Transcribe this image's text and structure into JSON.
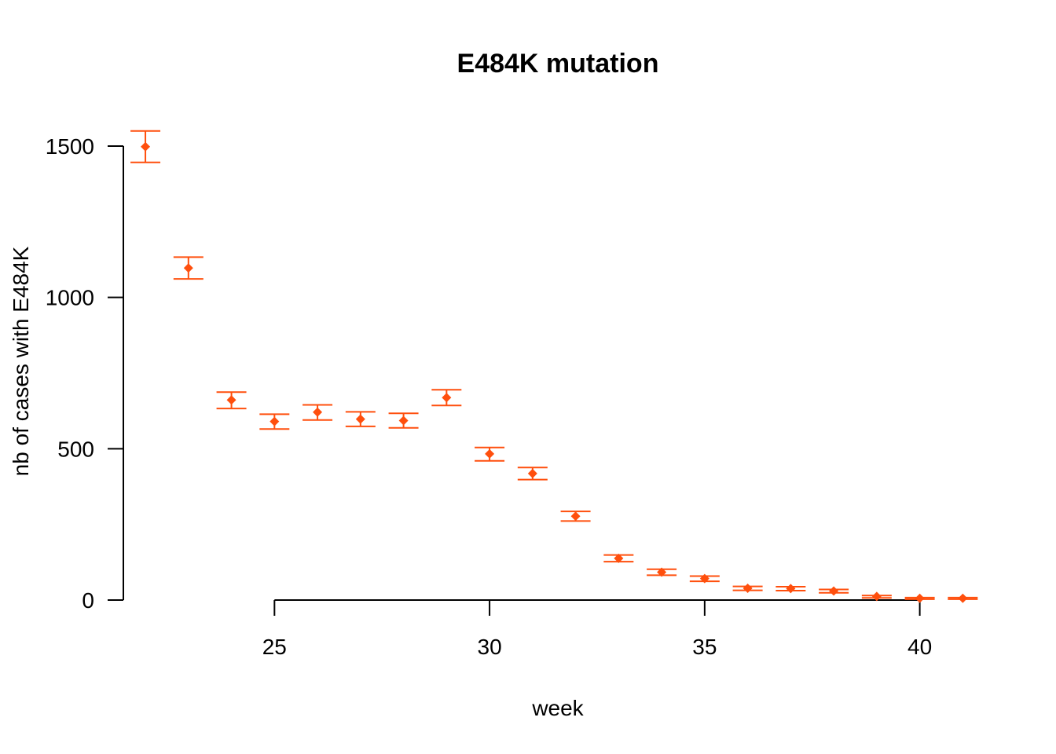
{
  "chart_data": {
    "type": "scatter",
    "title": "E484K mutation",
    "xlabel": "week",
    "ylabel": "nb of cases with E484K",
    "xlim": [
      21.25,
      41.45
    ],
    "ylim": [
      0,
      1500
    ],
    "x_ticks": [
      25,
      30,
      35,
      40
    ],
    "y_ticks": [
      0,
      500,
      1000,
      1500
    ],
    "grid": false,
    "legend": "none",
    "color": "#ff4f0d",
    "points": [
      {
        "x": 22,
        "y": 1498,
        "lo": 1446,
        "hi": 1550
      },
      {
        "x": 23,
        "y": 1097,
        "lo": 1061,
        "hi": 1133
      },
      {
        "x": 24,
        "y": 661,
        "lo": 633,
        "hi": 687
      },
      {
        "x": 25,
        "y": 590,
        "lo": 565,
        "hi": 614
      },
      {
        "x": 26,
        "y": 621,
        "lo": 595,
        "hi": 645
      },
      {
        "x": 27,
        "y": 598,
        "lo": 574,
        "hi": 622
      },
      {
        "x": 28,
        "y": 593,
        "lo": 569,
        "hi": 617
      },
      {
        "x": 29,
        "y": 669,
        "lo": 643,
        "hi": 695
      },
      {
        "x": 30,
        "y": 483,
        "lo": 460,
        "hi": 504
      },
      {
        "x": 31,
        "y": 418,
        "lo": 398,
        "hi": 438
      },
      {
        "x": 32,
        "y": 277,
        "lo": 261,
        "hi": 293
      },
      {
        "x": 33,
        "y": 138,
        "lo": 127,
        "hi": 149
      },
      {
        "x": 34,
        "y": 92,
        "lo": 82,
        "hi": 102
      },
      {
        "x": 35,
        "y": 71,
        "lo": 62,
        "hi": 79
      },
      {
        "x": 36,
        "y": 39,
        "lo": 32,
        "hi": 45
      },
      {
        "x": 37,
        "y": 38,
        "lo": 31,
        "hi": 44
      },
      {
        "x": 38,
        "y": 30,
        "lo": 24,
        "hi": 35
      },
      {
        "x": 39,
        "y": 12,
        "lo": 7,
        "hi": 15
      },
      {
        "x": 40,
        "y": 6,
        "lo": 3,
        "hi": 8
      },
      {
        "x": 41,
        "y": 6,
        "lo": 3,
        "hi": 8
      }
    ]
  }
}
